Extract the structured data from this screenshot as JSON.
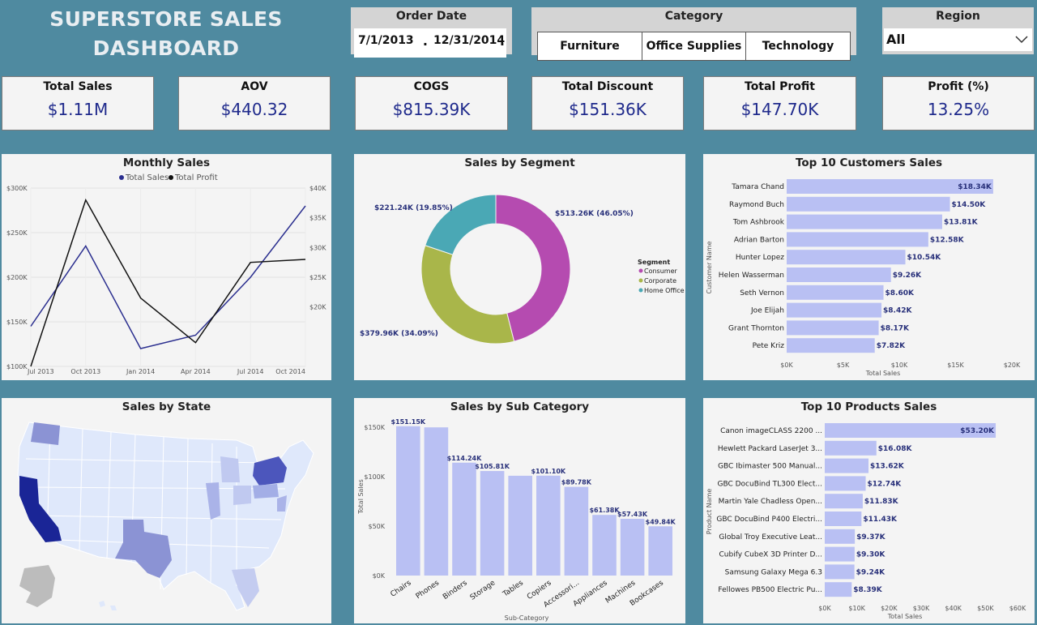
{
  "title": "SUPERSTORE SALES DASHBOARD",
  "filters": {
    "order_date": {
      "title": "Order Date",
      "start": "7/1/2013",
      "end": "12/31/2014"
    },
    "category": {
      "title": "Category",
      "options": [
        "Furniture",
        "Office Supplies",
        "Technology"
      ]
    },
    "region": {
      "title": "Region",
      "value": "All"
    }
  },
  "kpis": [
    {
      "label": "Total Sales",
      "value": "$1.11M"
    },
    {
      "label": "AOV",
      "value": "$440.32"
    },
    {
      "label": "COGS",
      "value": "$815.39K"
    },
    {
      "label": "Total Discount",
      "value": "$151.36K"
    },
    {
      "label": "Total Profit",
      "value": "$147.70K"
    },
    {
      "label": "Profit (%)",
      "value": "13.25%"
    }
  ],
  "colors": {
    "background": "#4f8aa0",
    "sales_line": "#2b2f8f",
    "profit_line": "#111111",
    "bar": "#b9c0f3",
    "consumer": "#b54bb0",
    "corporate": "#a9b64a",
    "home_office": "#4aa8b5"
  },
  "chart_data": [
    {
      "type": "line",
      "title": "Monthly Sales",
      "x": [
        "Jul 2013",
        "Oct 2013",
        "Jan 2014",
        "Apr 2014",
        "Jul 2014",
        "Oct 2014"
      ],
      "series": [
        {
          "name": "Total Sales",
          "axis": "left",
          "values": [
            145000,
            235000,
            120000,
            135000,
            200000,
            280000
          ]
        },
        {
          "name": "Total Profit",
          "axis": "right",
          "values": [
            10000,
            38000,
            21500,
            14000,
            27500,
            28000
          ]
        }
      ],
      "left_ticks": [
        "$100K",
        "$150K",
        "$200K",
        "$250K",
        "$300K"
      ],
      "right_ticks": [
        "$20K",
        "$25K",
        "$30K",
        "$35K",
        "$40K"
      ],
      "ylim_left": [
        100000,
        300000
      ],
      "ylim_right": [
        10000,
        40000
      ],
      "legend": "top-center"
    },
    {
      "type": "pie",
      "title": "Sales by Segment",
      "legend_title": "Segment",
      "slices": [
        {
          "name": "Consumer",
          "value": 46.05,
          "label": "$513.26K (46.05%)"
        },
        {
          "name": "Corporate",
          "value": 34.09,
          "label": "$379.96K (34.09%)"
        },
        {
          "name": "Home Office",
          "value": 19.85,
          "label": "$221.24K (19.85%)"
        }
      ]
    },
    {
      "type": "bar",
      "orientation": "horizontal",
      "title": "Top 10 Customers Sales",
      "ylabel": "Customer Name",
      "xlabel": "Total Sales",
      "categories": [
        "Tamara Chand",
        "Raymond Buch",
        "Tom Ashbrook",
        "Adrian Barton",
        "Hunter Lopez",
        "Helen Wasserman",
        "Seth Vernon",
        "Joe Elijah",
        "Grant Thornton",
        "Pete Kriz"
      ],
      "values": [
        18340,
        14500,
        13810,
        12580,
        10540,
        9260,
        8600,
        8420,
        8170,
        7820
      ],
      "labels": [
        "$18.34K",
        "$14.50K",
        "$13.81K",
        "$12.58K",
        "$10.54K",
        "$9.26K",
        "$8.60K",
        "$8.42K",
        "$8.17K",
        "$7.82K"
      ],
      "ticks": [
        "$0K",
        "$5K",
        "$10K",
        "$15K",
        "$20K"
      ],
      "xlim": [
        0,
        20000
      ]
    },
    {
      "type": "bar",
      "orientation": "vertical",
      "title": "Sales by Sub Category",
      "xlabel": "Sub-Category",
      "ylabel": "Total Sales",
      "categories": [
        "Chairs",
        "Phones",
        "Binders",
        "Storage",
        "Tables",
        "Copiers",
        "Accessori...",
        "Appliances",
        "Machines",
        "Bookcases"
      ],
      "values": [
        151150,
        150000,
        114240,
        105810,
        101000,
        101100,
        89780,
        61380,
        57430,
        49840
      ],
      "labels": [
        "$151.15K",
        "",
        "$114.24K",
        "$105.81K",
        "",
        "$101.10K",
        "$89.78K",
        "$61.38K",
        "$57.43K",
        "$49.84K"
      ],
      "ticks": [
        "$0K",
        "$50K",
        "$100K",
        "$150K"
      ],
      "ylim": [
        0,
        160000
      ]
    },
    {
      "type": "bar",
      "orientation": "horizontal",
      "title": "Top 10 Products Sales",
      "ylabel": "Product Name",
      "xlabel": "Total Sales",
      "categories": [
        "Canon imageCLASS 2200 ...",
        "Hewlett Packard LaserJet 3...",
        "GBC Ibimaster 500 Manual...",
        "GBC DocuBind TL300 Elect...",
        "Martin Yale Chadless Open...",
        "GBC DocuBind P400 Electri...",
        "Global Troy Executive Leat...",
        "Cubify CubeX 3D Printer D...",
        "Samsung Galaxy Mega 6.3",
        "Fellowes PB500 Electric Pu..."
      ],
      "values": [
        53200,
        16080,
        13620,
        12740,
        11830,
        11430,
        9370,
        9300,
        9240,
        8390
      ],
      "labels": [
        "$53.20K",
        "$16.08K",
        "$13.62K",
        "$12.74K",
        "$11.83K",
        "$11.43K",
        "$9.37K",
        "$9.30K",
        "$9.24K",
        "$8.39K"
      ],
      "ticks": [
        "$0K",
        "$10K",
        "$20K",
        "$30K",
        "$40K",
        "$50K",
        "$60K"
      ],
      "xlim": [
        0,
        60000
      ]
    }
  ],
  "map": {
    "title": "Sales by State"
  }
}
